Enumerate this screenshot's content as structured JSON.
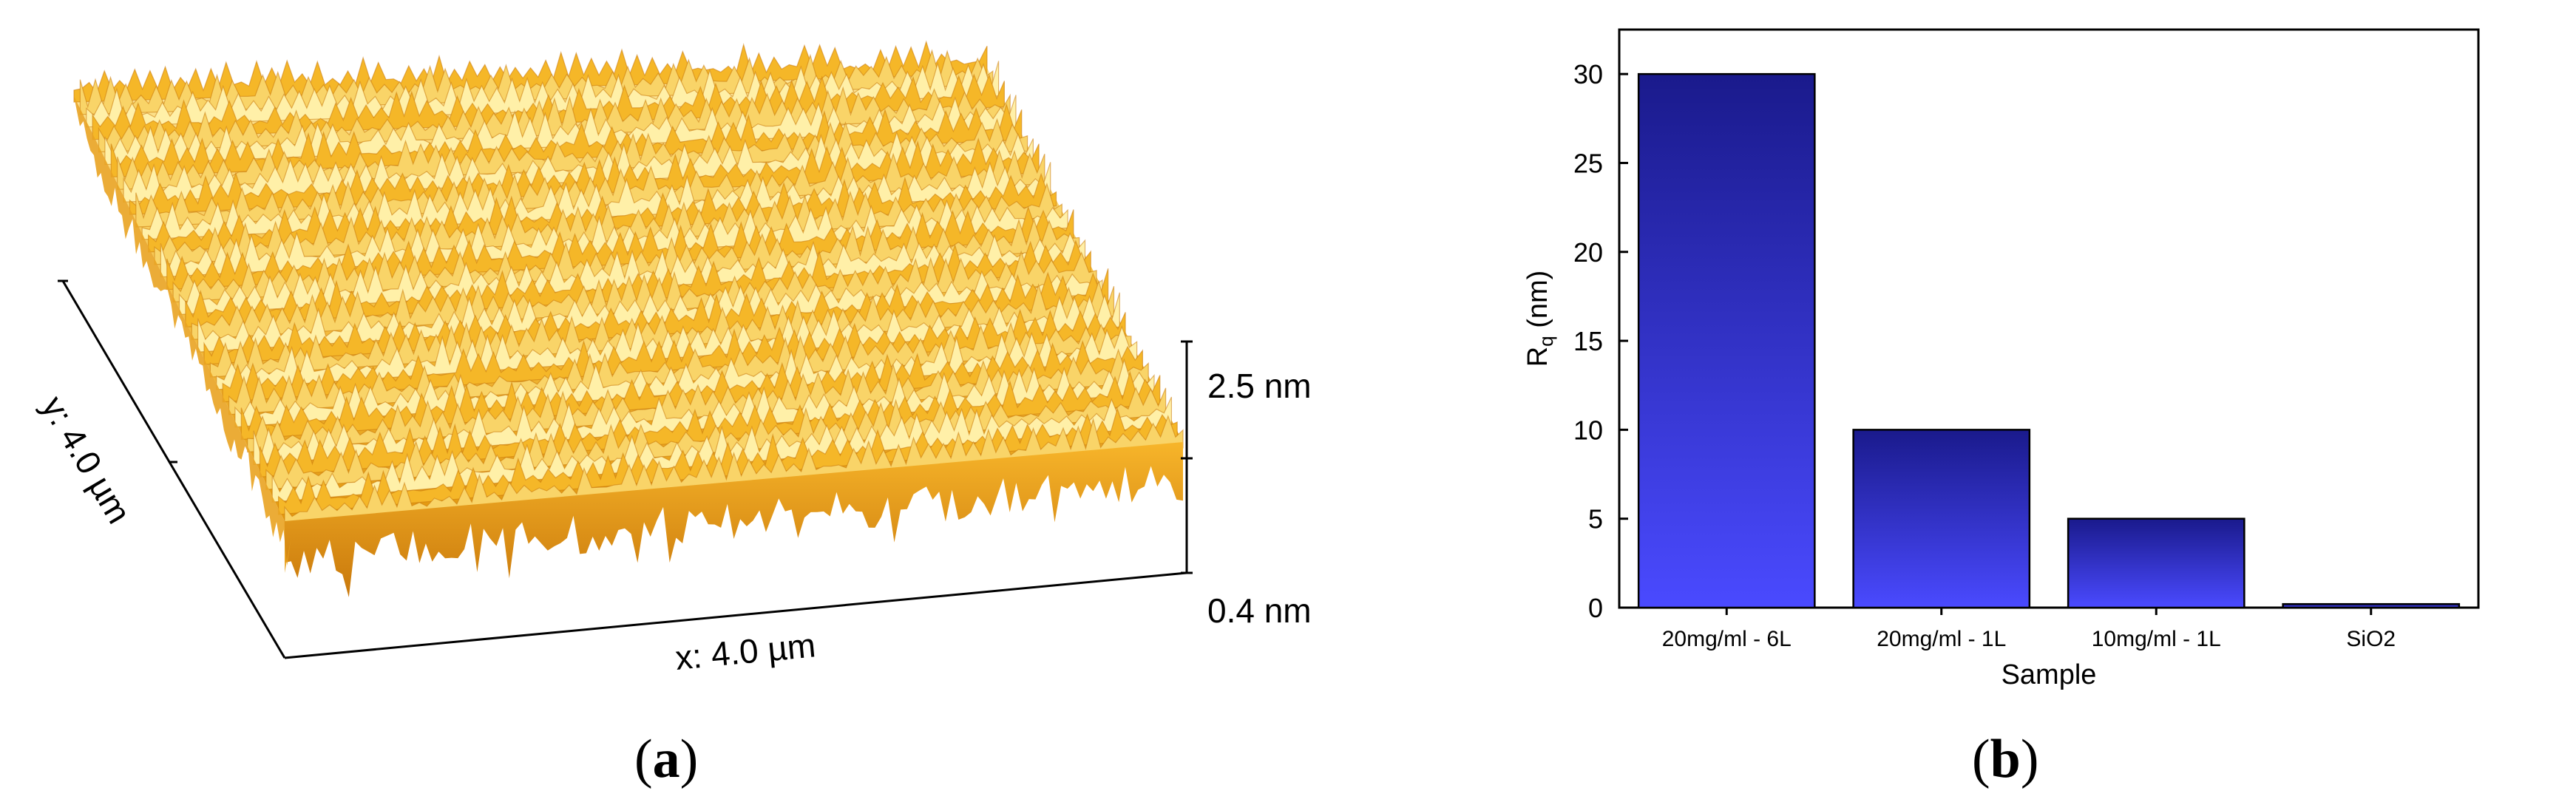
{
  "panel_a": {
    "caption_letter": "a",
    "z_top_label": "2.5 nm",
    "z_bottom_label": "0.4 nm",
    "x_axis_label": "x: 4.0 µm",
    "y_axis_label": "y: 4.0 µm",
    "surface_colors": {
      "light": "#fff0a8",
      "mid": "#f5b728",
      "dark": "#c9780b"
    }
  },
  "panel_b": {
    "caption_letter": "b"
  },
  "chart_data": {
    "type": "bar",
    "categories": [
      "20mg/ml - 6L",
      "20mg/ml - 1L",
      "10mg/ml - 1L",
      "SiO2"
    ],
    "values": [
      30,
      10,
      5,
      0.2
    ],
    "xlabel": "Sample",
    "ylabel_main": "R",
    "ylabel_sub": "q",
    "ylabel_unit": " (nm)",
    "ylim": [
      0,
      32.5
    ],
    "yticks": [
      0,
      5,
      10,
      15,
      20,
      25,
      30
    ],
    "grid": false,
    "bar_gradient": {
      "top": "#1a1a8c",
      "bottom": "#4a4aff"
    }
  }
}
